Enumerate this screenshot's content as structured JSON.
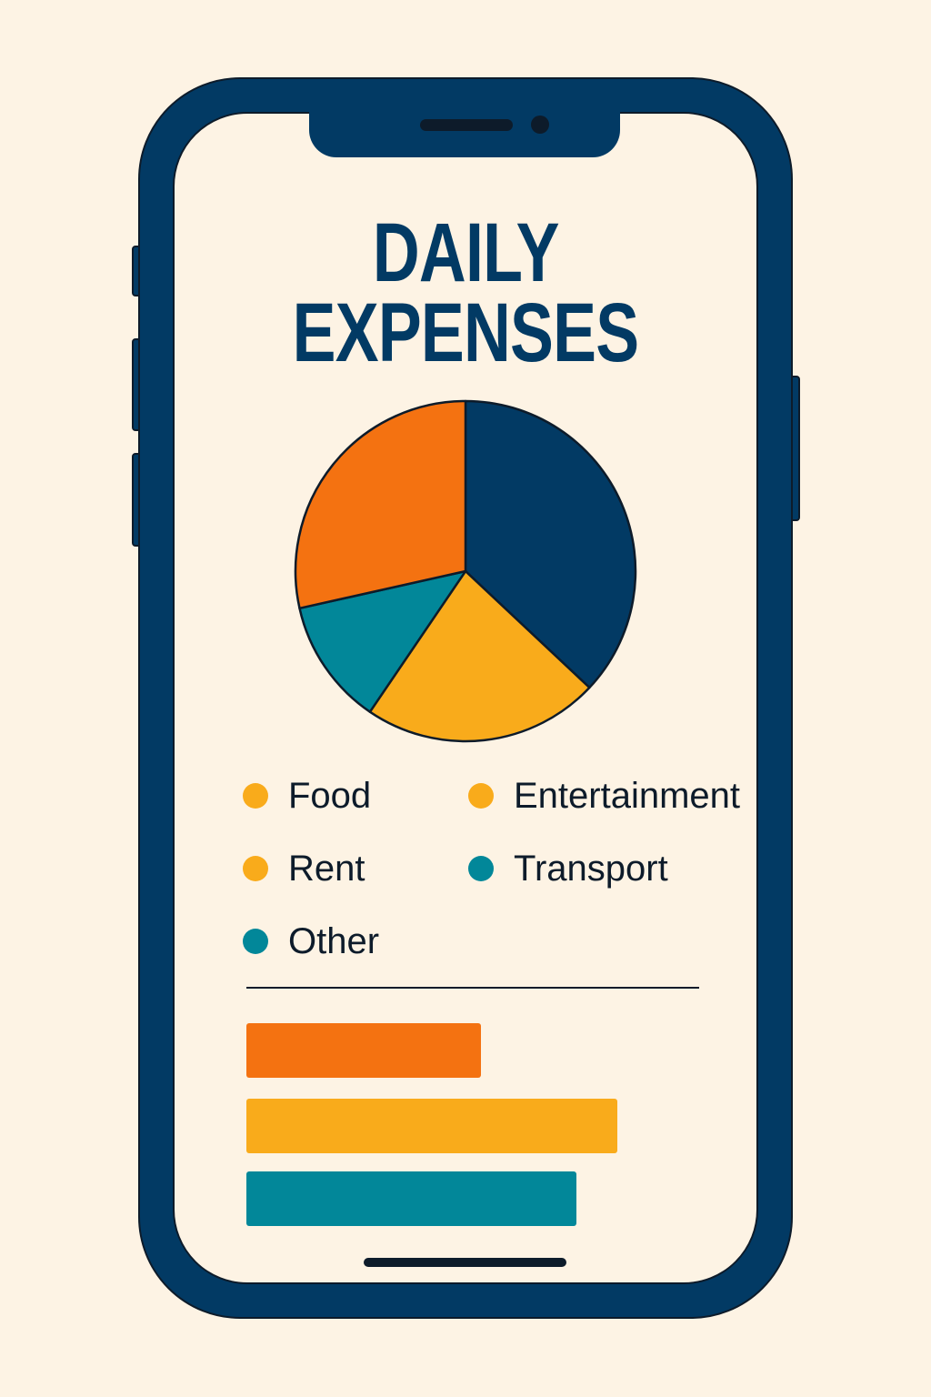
{
  "title_line1": "DAILY",
  "title_line2": "EXPENSES",
  "colors": {
    "navy": "#023a64",
    "orange": "#f47211",
    "yellow": "#f9ab1b",
    "teal": "#028799",
    "background": "#fdf3e4"
  },
  "chart_data": [
    {
      "type": "pie",
      "start": "top, clockwise",
      "slices": [
        {
          "value": 37,
          "color": "#023a64"
        },
        {
          "value": 22.5,
          "color": "#f9ab1b"
        },
        {
          "value": 12,
          "color": "#028799"
        },
        {
          "value": 28.5,
          "color": "#f47211"
        }
      ],
      "legend": [
        {
          "label": "Food",
          "color": "#f9ab1b"
        },
        {
          "label": "Entertainment",
          "color": "#f9ab1b"
        },
        {
          "label": "Rent",
          "color": "#f9ab1b"
        },
        {
          "label": "Transport",
          "color": "#028799"
        },
        {
          "label": "Other",
          "color": "#028799"
        }
      ]
    },
    {
      "type": "bar",
      "orientation": "horizontal",
      "axis": "none",
      "bars": [
        {
          "value": 0.52,
          "color": "#f47211"
        },
        {
          "value": 0.82,
          "color": "#f9ab1b"
        },
        {
          "value": 0.73,
          "color": "#028799"
        }
      ]
    }
  ]
}
